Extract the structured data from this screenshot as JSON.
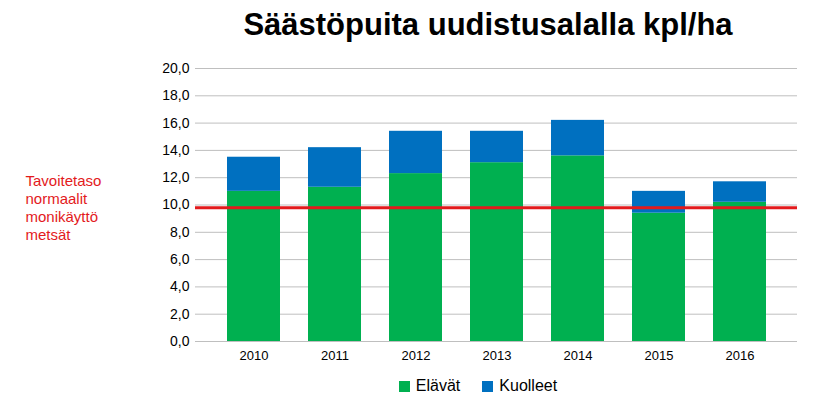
{
  "chart_data": {
    "type": "bar",
    "title": "Säästöpuita uudistusalalla kpl/ha",
    "categories": [
      "2010",
      "2011",
      "2012",
      "2013",
      "2014",
      "2015",
      "2016"
    ],
    "series": [
      {
        "name": "Elävät",
        "color": "#00b050",
        "values": [
          11.0,
          11.3,
          12.3,
          13.1,
          13.6,
          9.4,
          10.2
        ]
      },
      {
        "name": "Kuolleet",
        "color": "#0070c0",
        "values": [
          2.5,
          2.9,
          3.1,
          2.3,
          2.6,
          1.6,
          1.5
        ]
      }
    ],
    "stacked": true,
    "ylim": [
      0,
      20
    ],
    "yticks": [
      {
        "value": 0,
        "label": "0,0"
      },
      {
        "value": 2,
        "label": "2,0"
      },
      {
        "value": 4,
        "label": "4,0"
      },
      {
        "value": 6,
        "label": "6,0"
      },
      {
        "value": 8,
        "label": "8,0"
      },
      {
        "value": 10,
        "label": "10,0"
      },
      {
        "value": 12,
        "label": "12,0"
      },
      {
        "value": 14,
        "label": "14,0"
      },
      {
        "value": 16,
        "label": "16,0"
      },
      {
        "value": 18,
        "label": "18,0"
      },
      {
        "value": 20,
        "label": "20,0"
      }
    ],
    "grid": true,
    "legend": "bottom",
    "annotations": [
      {
        "text": "Tavoitetaso\nnormaalit\nmonikäyttö\nmetsät",
        "y": 9.8,
        "color": "#e31a1c"
      }
    ]
  }
}
